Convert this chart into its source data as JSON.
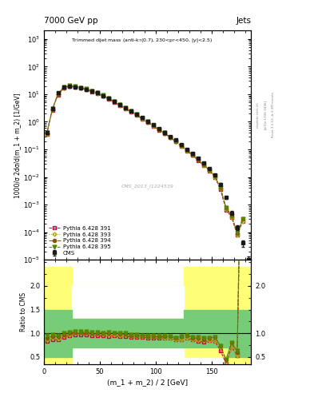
{
  "title_left": "7000 GeV pp",
  "title_right": "Jets",
  "annotation": "Trimmed dijet mass (anti-k$_T$(0.7), 230<p$_T$<450, |y|<2.5)",
  "cms_label": "CMS_2013_I1224539",
  "ylabel_main": "1000/σ 2dσ/d(m_1 + m_2) [1/GeV]",
  "ylabel_ratio": "Ratio to CMS",
  "xlabel": "(m_1 + m_2) / 2 [GeV]",
  "xlim": [
    0,
    185
  ],
  "ylim_main": [
    1e-05,
    2000
  ],
  "ylim_ratio": [
    0.35,
    2.55
  ],
  "cms_x": [
    2.5,
    7.5,
    12.5,
    17.5,
    22.5,
    27.5,
    32.5,
    37.5,
    42.5,
    47.5,
    52.5,
    57.5,
    62.5,
    67.5,
    72.5,
    77.5,
    82.5,
    87.5,
    92.5,
    97.5,
    102.5,
    107.5,
    112.5,
    117.5,
    122.5,
    127.5,
    132.5,
    137.5,
    142.5,
    147.5,
    152.5,
    157.5,
    162.5,
    167.5,
    172.5,
    177.5,
    182.5
  ],
  "cms_y": [
    0.42,
    3.1,
    11.0,
    18.0,
    20.0,
    18.5,
    17.0,
    15.0,
    13.0,
    11.0,
    9.0,
    7.0,
    5.5,
    4.2,
    3.2,
    2.5,
    1.9,
    1.4,
    1.05,
    0.78,
    0.57,
    0.42,
    0.3,
    0.22,
    0.15,
    0.1,
    0.072,
    0.048,
    0.032,
    0.02,
    0.012,
    0.0055,
    0.0018,
    0.0005,
    0.00015,
    4e-05,
    1e-05
  ],
  "cms_yerr": [
    0.05,
    0.3,
    0.8,
    1.2,
    1.3,
    1.2,
    1.1,
    1.0,
    0.8,
    0.7,
    0.6,
    0.5,
    0.35,
    0.27,
    0.2,
    0.16,
    0.12,
    0.09,
    0.07,
    0.05,
    0.04,
    0.03,
    0.02,
    0.015,
    0.011,
    0.008,
    0.005,
    0.003,
    0.002,
    0.0015,
    0.001,
    0.0005,
    0.0002,
    8e-05,
    3e-05,
    1e-05,
    3e-06
  ],
  "py391_x": [
    2.5,
    7.5,
    12.5,
    17.5,
    22.5,
    27.5,
    32.5,
    37.5,
    42.5,
    47.5,
    52.5,
    57.5,
    62.5,
    67.5,
    72.5,
    77.5,
    82.5,
    87.5,
    92.5,
    97.5,
    102.5,
    107.5,
    112.5,
    117.5,
    122.5,
    127.5,
    132.5,
    137.5,
    142.5,
    147.5,
    152.5,
    157.5,
    162.5,
    167.5,
    172.5,
    177.5
  ],
  "py391_y": [
    0.35,
    2.7,
    9.5,
    16.5,
    19.0,
    18.0,
    16.5,
    14.5,
    12.5,
    10.5,
    8.5,
    6.6,
    5.2,
    3.9,
    3.0,
    2.3,
    1.75,
    1.28,
    0.95,
    0.7,
    0.51,
    0.38,
    0.27,
    0.19,
    0.13,
    0.09,
    0.062,
    0.04,
    0.026,
    0.017,
    0.01,
    0.0035,
    0.00065,
    0.00035,
    8e-05,
    0.00025
  ],
  "py393_x": [
    2.5,
    7.5,
    12.5,
    17.5,
    22.5,
    27.5,
    32.5,
    37.5,
    42.5,
    47.5,
    52.5,
    57.5,
    62.5,
    67.5,
    72.5,
    77.5,
    82.5,
    87.5,
    92.5,
    97.5,
    102.5,
    107.5,
    112.5,
    117.5,
    122.5,
    127.5,
    132.5,
    137.5,
    142.5,
    147.5,
    152.5,
    157.5,
    162.5,
    167.5,
    172.5,
    177.5
  ],
  "py393_y": [
    0.36,
    2.8,
    9.8,
    17.0,
    19.5,
    18.5,
    17.0,
    15.0,
    12.8,
    10.8,
    8.8,
    6.8,
    5.3,
    4.0,
    3.1,
    2.35,
    1.78,
    1.3,
    0.97,
    0.71,
    0.52,
    0.38,
    0.27,
    0.19,
    0.13,
    0.09,
    0.062,
    0.041,
    0.027,
    0.017,
    0.01,
    0.0038,
    0.0007,
    0.00035,
    8e-05,
    0.00025
  ],
  "py394_x": [
    2.5,
    7.5,
    12.5,
    17.5,
    22.5,
    27.5,
    32.5,
    37.5,
    42.5,
    47.5,
    52.5,
    57.5,
    62.5,
    67.5,
    72.5,
    77.5,
    82.5,
    87.5,
    92.5,
    97.5,
    102.5,
    107.5,
    112.5,
    117.5,
    122.5,
    127.5,
    132.5,
    137.5,
    142.5,
    147.5,
    152.5,
    157.5,
    162.5,
    167.5,
    172.5,
    177.5
  ],
  "py394_y": [
    0.38,
    2.9,
    10.2,
    17.5,
    20.0,
    18.8,
    17.2,
    15.2,
    13.0,
    11.0,
    9.0,
    7.0,
    5.5,
    4.15,
    3.15,
    2.4,
    1.82,
    1.33,
    0.99,
    0.73,
    0.53,
    0.39,
    0.28,
    0.2,
    0.14,
    0.095,
    0.065,
    0.043,
    0.028,
    0.018,
    0.011,
    0.004,
    0.0008,
    0.0004,
    9e-05,
    0.0003
  ],
  "py395_x": [
    2.5,
    7.5,
    12.5,
    17.5,
    22.5,
    27.5,
    32.5,
    37.5,
    42.5,
    47.5,
    52.5,
    57.5,
    62.5,
    67.5,
    72.5,
    77.5,
    82.5,
    87.5,
    92.5,
    97.5,
    102.5,
    107.5,
    112.5,
    117.5,
    122.5,
    127.5,
    132.5,
    137.5,
    142.5,
    147.5,
    152.5,
    157.5,
    162.5,
    167.5,
    172.5,
    177.5
  ],
  "py395_y": [
    0.4,
    3.0,
    10.5,
    18.0,
    20.5,
    19.2,
    17.5,
    15.5,
    13.2,
    11.2,
    9.1,
    7.1,
    5.55,
    4.2,
    3.2,
    2.42,
    1.84,
    1.34,
    1.0,
    0.74,
    0.54,
    0.4,
    0.28,
    0.2,
    0.14,
    0.096,
    0.066,
    0.044,
    0.029,
    0.018,
    0.011,
    0.004,
    0.0008,
    0.0004,
    9.5e-05,
    0.0003
  ],
  "ratio_x": [
    2.5,
    7.5,
    12.5,
    17.5,
    22.5,
    27.5,
    32.5,
    37.5,
    42.5,
    47.5,
    52.5,
    57.5,
    62.5,
    67.5,
    72.5,
    77.5,
    82.5,
    87.5,
    92.5,
    97.5,
    102.5,
    107.5,
    112.5,
    117.5,
    122.5,
    127.5,
    132.5,
    137.5,
    142.5,
    147.5,
    152.5,
    157.5,
    162.5,
    167.5,
    172.5,
    177.5
  ],
  "ratio391_y": [
    0.83,
    0.87,
    0.86,
    0.92,
    0.95,
    0.97,
    0.97,
    0.97,
    0.96,
    0.955,
    0.944,
    0.943,
    0.945,
    0.929,
    0.938,
    0.92,
    0.921,
    0.914,
    0.905,
    0.897,
    0.895,
    0.905,
    0.9,
    0.864,
    0.867,
    0.9,
    0.861,
    0.833,
    0.813,
    0.85,
    0.833,
    0.636,
    0.361,
    0.7,
    0.533,
    6.25
  ],
  "ratio393_y": [
    0.86,
    0.9,
    0.891,
    0.944,
    0.975,
    1.0,
    1.0,
    1.0,
    0.985,
    0.982,
    0.978,
    0.971,
    0.964,
    0.952,
    0.969,
    0.94,
    0.937,
    0.929,
    0.924,
    0.91,
    0.912,
    0.905,
    0.9,
    0.864,
    0.867,
    0.9,
    0.861,
    0.854,
    0.844,
    0.85,
    0.833,
    0.691,
    0.389,
    0.7,
    0.533,
    6.25
  ],
  "ratio394_y": [
    0.905,
    0.935,
    0.927,
    0.972,
    1.0,
    1.016,
    1.012,
    1.013,
    1.0,
    1.0,
    1.0,
    1.0,
    1.0,
    0.988,
    0.984,
    0.96,
    0.958,
    0.95,
    0.943,
    0.936,
    0.93,
    0.929,
    0.933,
    0.909,
    0.933,
    0.95,
    0.903,
    0.896,
    0.875,
    0.9,
    0.917,
    0.727,
    0.444,
    0.8,
    0.6,
    7.5
  ],
  "ratio395_y": [
    0.952,
    0.968,
    0.955,
    1.0,
    1.025,
    1.038,
    1.029,
    1.033,
    1.015,
    1.018,
    1.011,
    1.014,
    1.009,
    1.0,
    1.0,
    0.968,
    0.968,
    0.957,
    0.952,
    0.949,
    0.947,
    0.952,
    0.933,
    0.909,
    0.933,
    0.96,
    0.917,
    0.917,
    0.906,
    0.9,
    0.917,
    0.727,
    0.444,
    0.8,
    0.633,
    7.5
  ],
  "color_cms": "#1a1a1a",
  "color_391": "#cc0044",
  "color_393": "#aaaa00",
  "color_394": "#885500",
  "color_395": "#558800"
}
